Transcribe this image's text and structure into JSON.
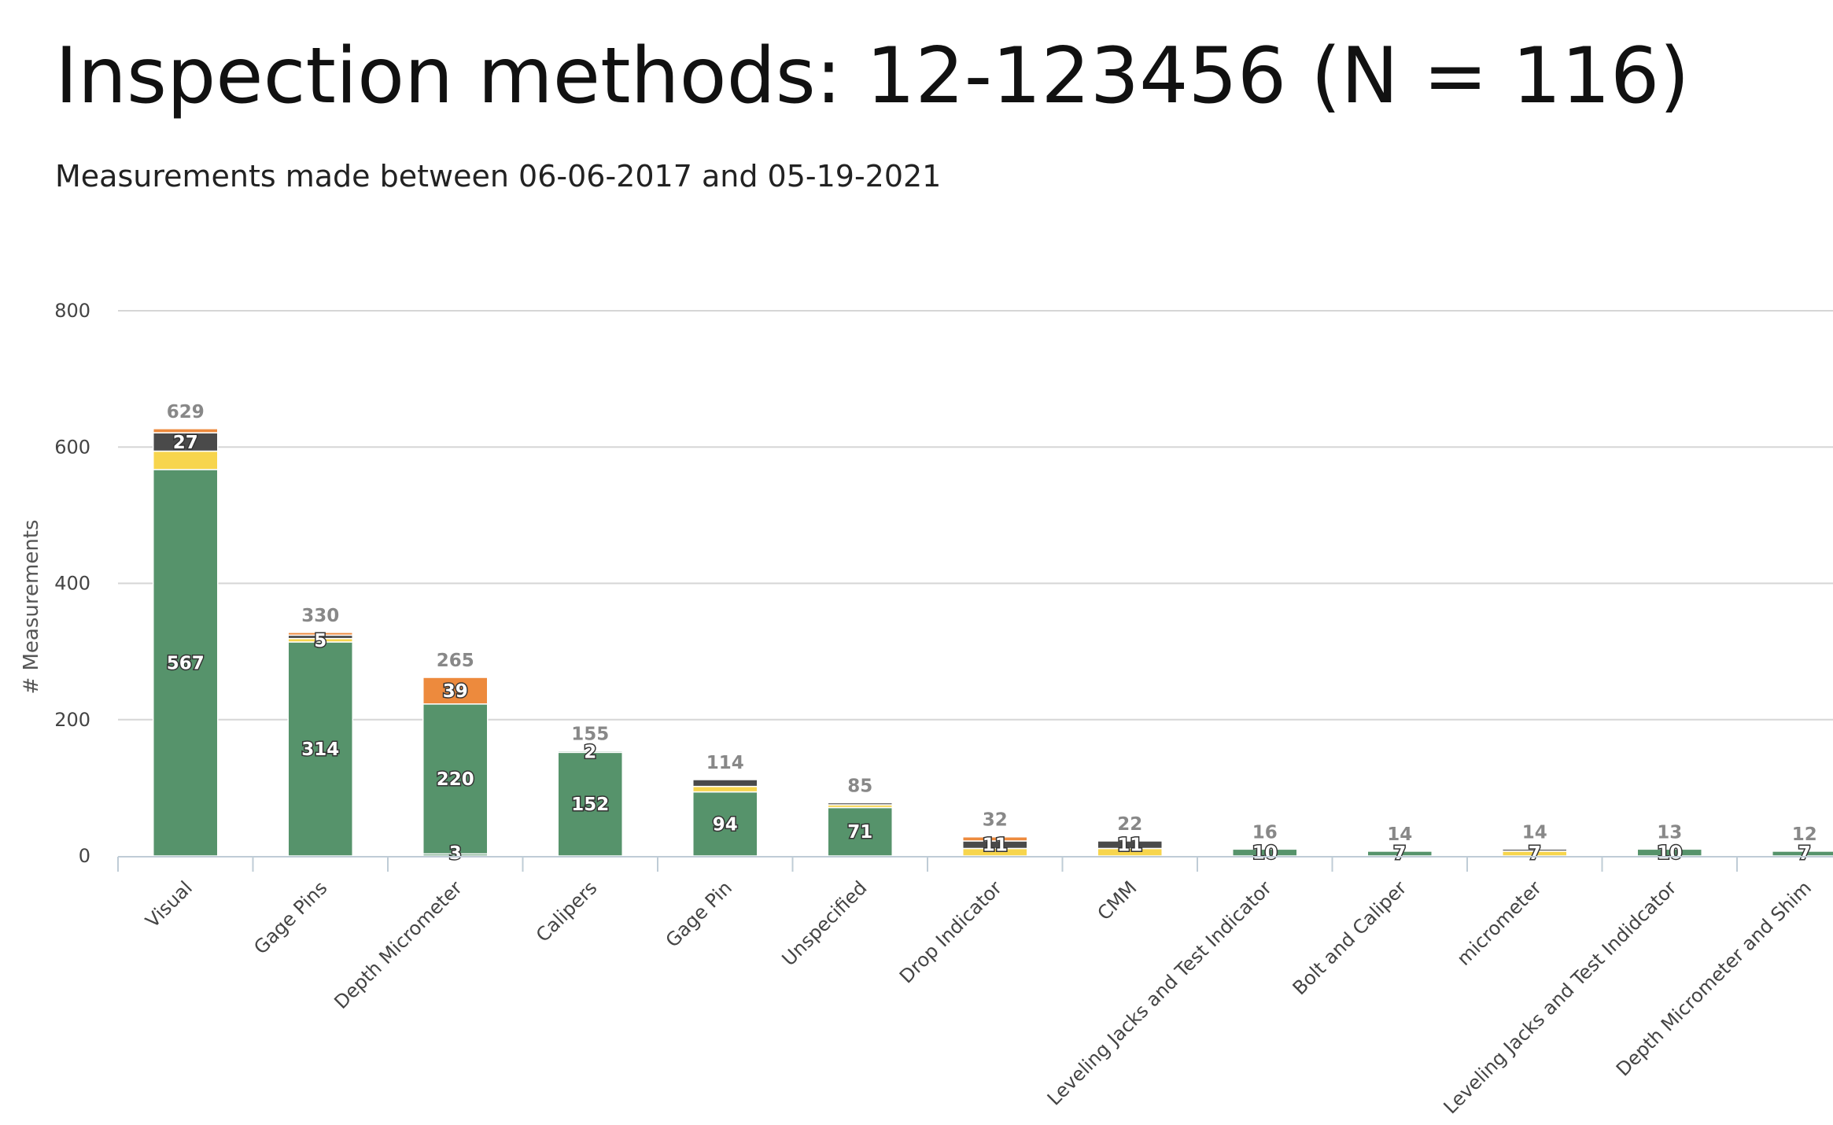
{
  "header": {
    "title": "Inspection methods: 12-123456 (N = 116)",
    "subtitle": "Measurements made between 06-06-2017 and 05-19-2021"
  },
  "chart_data": {
    "type": "bar",
    "stacked": true,
    "title": "Inspection methods: 12-123456 (N = 116)",
    "subtitle": "Measurements made between 06-06-2017 and 05-19-2021",
    "xlabel": "",
    "ylabel": "# Measurements",
    "ylim": [
      0,
      800
    ],
    "yticks": [
      0,
      200,
      400,
      600,
      800
    ],
    "grid": true,
    "legend": "none",
    "colors": {
      "green": "#56936b",
      "yellow": "#f7d54d",
      "dark": "#4a4a4a",
      "orange": "#ed8a3d",
      "grid": "#d6d6d6",
      "axis": "#bfccd6"
    },
    "categories": [
      "Visual",
      "Gage Pins",
      "Depth Micrometer",
      "Calipers",
      "Gage Pin",
      "Unspecified",
      "Drop Indicator",
      "CMM",
      "Leveling Jacks and Test Indicator",
      "Bolt and Caliper",
      "micrometer",
      "Leveling Jacks and Test Indidcator",
      "Depth Micrometer and Shim"
    ],
    "totals": [
      629,
      330,
      265,
      155,
      114,
      85,
      32,
      22,
      16,
      14,
      14,
      13,
      12
    ],
    "bars": [
      {
        "segments": [
          {
            "color": "green",
            "value": 567,
            "label": "567"
          },
          {
            "color": "yellow",
            "value": 27,
            "label": ""
          },
          {
            "color": "dark",
            "value": 27,
            "label": "27"
          },
          {
            "color": "orange",
            "value": 6,
            "label": ""
          }
        ]
      },
      {
        "segments": [
          {
            "color": "green",
            "value": 314,
            "label": "314"
          },
          {
            "color": "yellow",
            "value": 5,
            "label": "5"
          },
          {
            "color": "dark",
            "value": 5,
            "label": ""
          },
          {
            "color": "orange",
            "value": 4,
            "label": ""
          }
        ]
      },
      {
        "segments": [
          {
            "color": "green",
            "value": 3,
            "label": "3"
          },
          {
            "color": "green",
            "value": 220,
            "label": "220"
          },
          {
            "color": "orange",
            "value": 39,
            "label": "39"
          }
        ]
      },
      {
        "segments": [
          {
            "color": "green",
            "value": 152,
            "label": "152"
          },
          {
            "color": "green",
            "value": 2,
            "label": "2"
          }
        ]
      },
      {
        "segments": [
          {
            "color": "green",
            "value": 94,
            "label": "94"
          },
          {
            "color": "yellow",
            "value": 8,
            "label": ""
          },
          {
            "color": "dark",
            "value": 10,
            "label": ""
          }
        ]
      },
      {
        "segments": [
          {
            "color": "green",
            "value": 71,
            "label": "71"
          },
          {
            "color": "yellow",
            "value": 4,
            "label": ""
          },
          {
            "color": "dark",
            "value": 3,
            "label": ""
          }
        ]
      },
      {
        "segments": [
          {
            "color": "yellow",
            "value": 11,
            "label": ""
          },
          {
            "color": "dark",
            "value": 11,
            "label": "11"
          },
          {
            "color": "orange",
            "value": 6,
            "label": ""
          }
        ]
      },
      {
        "segments": [
          {
            "color": "yellow",
            "value": 11,
            "label": ""
          },
          {
            "color": "dark",
            "value": 11,
            "label": "11"
          }
        ]
      },
      {
        "segments": [
          {
            "color": "green",
            "value": 10,
            "label": "10"
          }
        ]
      },
      {
        "segments": [
          {
            "color": "green",
            "value": 7,
            "label": "7"
          }
        ]
      },
      {
        "segments": [
          {
            "color": "yellow",
            "value": 7,
            "label": "7"
          },
          {
            "color": "dark",
            "value": 3,
            "label": ""
          }
        ]
      },
      {
        "segments": [
          {
            "color": "green",
            "value": 10,
            "label": "10"
          }
        ]
      },
      {
        "segments": [
          {
            "color": "green",
            "value": 7,
            "label": "7"
          }
        ]
      }
    ]
  }
}
